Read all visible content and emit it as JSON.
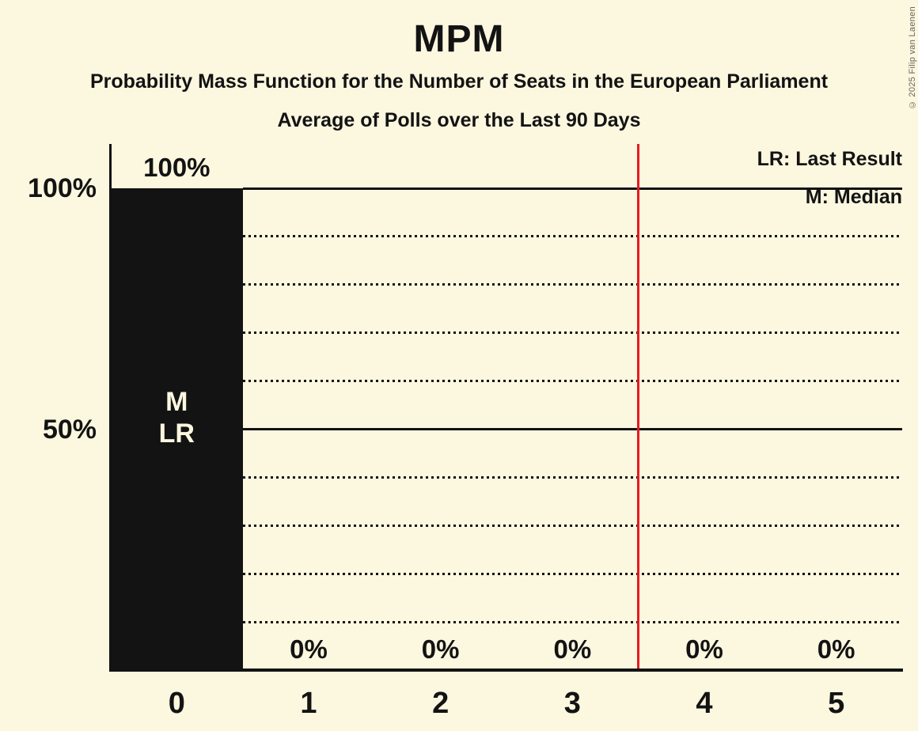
{
  "header": {
    "title": "MPM",
    "subtitle1": "Probability Mass Function for the Number of Seats in the European Parliament",
    "subtitle2": "Average of Polls over the Last 90 Days"
  },
  "copyright": "© 2025 Filip van Laenen",
  "legend": {
    "last_result": "LR: Last Result",
    "median": "M: Median"
  },
  "colors": {
    "background": "#FCF7DF",
    "bar": "#131313",
    "text": "#131313",
    "red_line": "#E61B23",
    "bar_label_text": "#FCF7DF"
  },
  "chart_data": {
    "type": "bar",
    "title": "MPM",
    "subtitle": "Probability Mass Function for the Number of Seats in the European Parliament",
    "note": "Average of Polls over the Last 90 Days",
    "xlabel": "",
    "ylabel": "",
    "categories": [
      "0",
      "1",
      "2",
      "3",
      "4",
      "5"
    ],
    "values": [
      100,
      0,
      0,
      0,
      0,
      0
    ],
    "value_labels": [
      "100%",
      "0%",
      "0%",
      "0%",
      "0%",
      "0%"
    ],
    "ylim": [
      0,
      100
    ],
    "y_ticks": [
      {
        "label": "100%",
        "value": 100
      },
      {
        "label": "50%",
        "value": 50
      }
    ],
    "solid_gridlines_pct": [
      100,
      50
    ],
    "dotted_gridlines_pct": [
      90,
      80,
      70,
      60,
      40,
      30,
      20,
      10
    ],
    "red_vertical_line_at_x": 3.5,
    "median_category": "0",
    "last_result_category": "0",
    "median_marker": "M",
    "last_result_marker": "LR",
    "legend_entries": [
      "LR: Last Result",
      "M: Median"
    ],
    "legend_position": "top-right",
    "grid": "horizontal; solid at 100% and 50%, dotted every 10%"
  }
}
